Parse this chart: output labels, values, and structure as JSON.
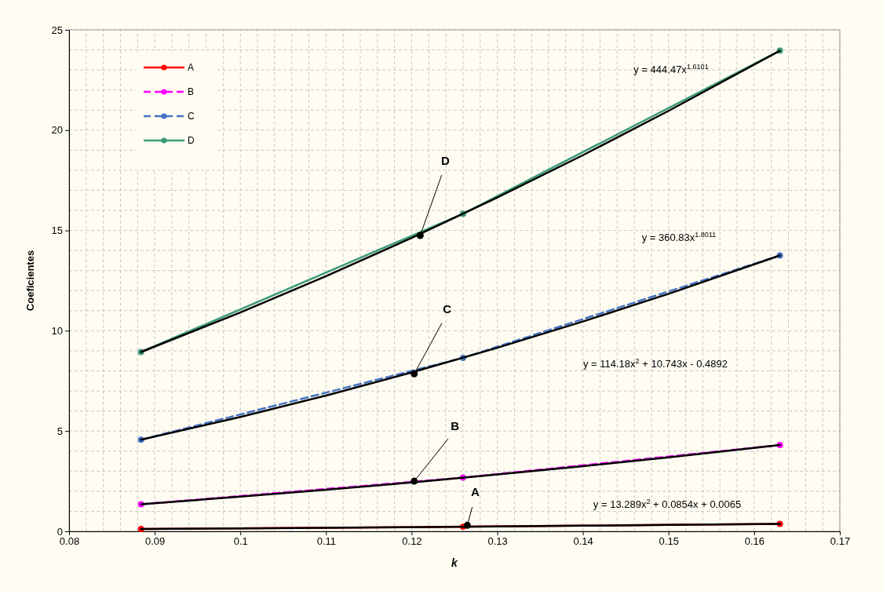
{
  "chart_data": {
    "type": "line",
    "xlabel": "k",
    "ylabel": "Coeficientes",
    "xlim": [
      0.08,
      0.17
    ],
    "xticks": [
      0.08,
      0.09,
      0.1,
      0.11,
      0.12,
      0.13,
      0.14,
      0.15,
      0.16,
      0.17
    ],
    "ylim": [
      0,
      25
    ],
    "yticks": [
      0,
      5,
      10,
      15,
      20,
      25
    ],
    "grid": true,
    "legend": "top left",
    "marker": "circle",
    "x": [
      0.0884,
      0.126,
      0.163
    ],
    "series": [
      {
        "name": "A",
        "color": "#ff0000",
        "line_style": "solid",
        "values": [
          0.12,
          0.23,
          0.37
        ]
      },
      {
        "name": "B",
        "color": "#ff00ff",
        "line_style": "dashed",
        "values": [
          1.35,
          2.68,
          4.3
        ]
      },
      {
        "name": "C",
        "color": "#4472c4",
        "line_style": "dashed",
        "values": [
          4.57,
          8.65,
          13.75
        ]
      },
      {
        "name": "D",
        "color": "#3a9a78",
        "line_style": "solid",
        "values": [
          8.94,
          15.83,
          23.96
        ]
      },
      {
        "type": "line",
        "color": "#000000",
        "marker": "none",
        "x": [
          0.0884,
          0.1,
          0.11,
          0.12,
          0.13,
          0.14,
          0.15,
          0.163
        ],
        "values": [
          0.12,
          0.15,
          0.18,
          0.21,
          0.24,
          0.28,
          0.32,
          0.37
        ]
      },
      {
        "type": "line",
        "color": "#000000",
        "marker": "none",
        "x": [
          0.0884,
          0.1,
          0.11,
          0.12,
          0.13,
          0.14,
          0.15,
          0.163
        ],
        "values": [
          1.35,
          1.73,
          2.07,
          2.44,
          2.84,
          3.25,
          3.69,
          4.3
        ]
      },
      {
        "type": "line",
        "color": "#000000",
        "marker": "none",
        "x": [
          0.0884,
          0.1,
          0.11,
          0.12,
          0.13,
          0.14,
          0.15,
          0.163
        ],
        "values": [
          4.57,
          5.7,
          6.77,
          7.92,
          9.15,
          10.46,
          11.84,
          13.75
        ]
      },
      {
        "type": "line",
        "color": "#000000",
        "marker": "none",
        "x": [
          0.0884,
          0.1,
          0.11,
          0.12,
          0.13,
          0.14,
          0.15,
          0.163
        ],
        "values": [
          8.94,
          10.91,
          12.72,
          14.63,
          16.64,
          18.75,
          20.96,
          23.96
        ]
      }
    ],
    "annotations": [
      {
        "text": "A",
        "x": 0.1265,
        "y": 0.3
      },
      {
        "text": "B",
        "x": 0.1203,
        "y": 2.5
      },
      {
        "text": "C",
        "x": 0.1203,
        "y": 7.85
      },
      {
        "text": "D",
        "x": 0.121,
        "y": 14.75
      },
      "y = 13.289x$^{2}$ + 0.0854x + 0.0065",
      "y = 114.18x$^{2}$ + 10.743x - 0.4892",
      "y = 360.83x$^{1.8011}$",
      "y = 444.47x$^{1.6101}$"
    ]
  }
}
